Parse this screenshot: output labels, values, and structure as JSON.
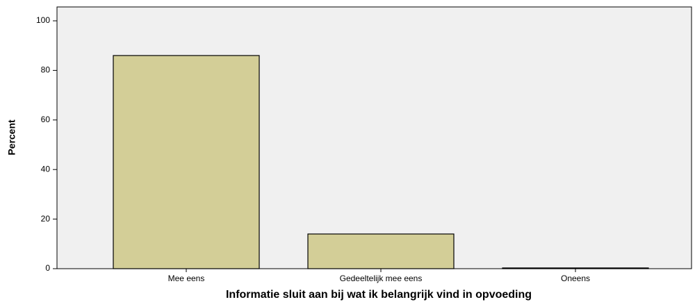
{
  "chart_data": {
    "type": "bar",
    "x_label": "Informatie sluit aan bij wat ik belangrijk vind in opvoeding",
    "y_label": "Percent",
    "categories": [
      "Mee eens",
      "Gedeeltelijk mee eens",
      "Oneens"
    ],
    "values": [
      86,
      14,
      0.3
    ],
    "color": "#d3ce97",
    "ylim": [
      0,
      105.6
    ],
    "yticks": [
      0,
      20,
      40,
      60,
      80,
      100
    ],
    "grid": false
  }
}
